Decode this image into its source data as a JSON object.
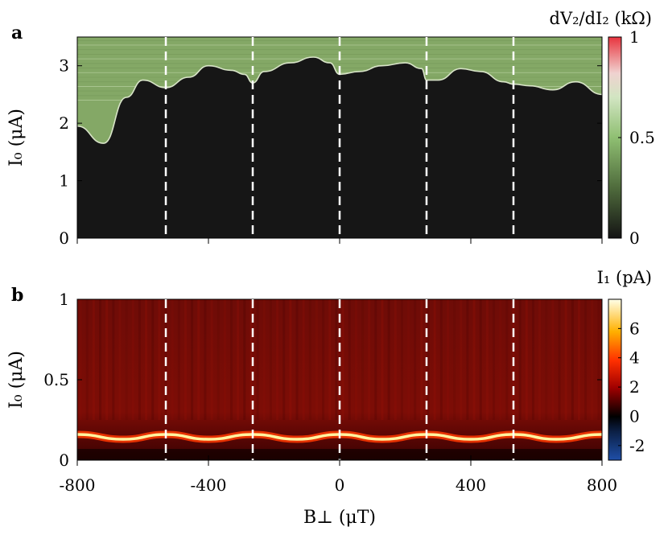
{
  "panels": {
    "a": {
      "label": "a",
      "ylabel": "I₀ (μA)",
      "colorbar_label": "dV₂/dI₂ (kΩ)",
      "yticks": [
        "0",
        "1",
        "2",
        "3"
      ],
      "colorbar_ticks": [
        "0",
        "0.5",
        "1"
      ]
    },
    "b": {
      "label": "b",
      "ylabel": "I₀ (μA)",
      "colorbar_label": "I₁ (pA)",
      "yticks": [
        "0",
        "0.5",
        "1"
      ],
      "colorbar_ticks": [
        "-2",
        "0",
        "2",
        "4",
        "6"
      ]
    }
  },
  "xaxis": {
    "label": "B⊥ (μT)",
    "ticks": [
      "-800",
      "-400",
      "0",
      "400",
      "800"
    ]
  },
  "chart_data": [
    {
      "type": "heatmap",
      "panel": "a",
      "title": "",
      "xlabel": "B⊥ (μT)",
      "ylabel": "I₀ (μA)",
      "xlim": [
        -800,
        800
      ],
      "ylim": [
        0,
        3.5
      ],
      "colorbar": {
        "label": "dV₂/dI₂ (kΩ)",
        "range": [
          0,
          1
        ]
      },
      "dashed_lines_x": [
        -530,
        -265,
        0,
        265,
        530
      ],
      "switching_current_boundary": {
        "x": [
          -800,
          -720,
          -650,
          -600,
          -530,
          -460,
          -400,
          -330,
          -290,
          -265,
          -230,
          -150,
          -80,
          -30,
          0,
          60,
          130,
          200,
          250,
          265,
          300,
          370,
          430,
          500,
          530,
          580,
          650,
          720,
          800
        ],
        "y": [
          1.95,
          1.65,
          2.45,
          2.75,
          2.62,
          2.8,
          3.0,
          2.92,
          2.85,
          2.7,
          2.9,
          3.05,
          3.15,
          3.05,
          2.85,
          2.9,
          3.0,
          3.05,
          2.95,
          2.75,
          2.75,
          2.95,
          2.9,
          2.72,
          2.68,
          2.65,
          2.58,
          2.72,
          2.5
        ]
      },
      "colors": {
        "superconducting": "#161616",
        "normal": "#84a866",
        "boundary": "#d8e4c8"
      }
    },
    {
      "type": "heatmap",
      "panel": "b",
      "title": "",
      "xlabel": "B⊥ (μT)",
      "ylabel": "I₀ (μA)",
      "xlim": [
        -800,
        800
      ],
      "ylim": [
        0,
        1
      ],
      "colorbar": {
        "label": "I₁ (pA)",
        "range": [
          -3,
          8
        ]
      },
      "dashed_lines_x": [
        -530,
        -265,
        0,
        265,
        530
      ],
      "peak_band_center": {
        "x": [
          -800,
          -660,
          -530,
          -400,
          -265,
          -130,
          0,
          130,
          265,
          400,
          530,
          660,
          800
        ],
        "y": [
          0.16,
          0.13,
          0.16,
          0.13,
          0.16,
          0.13,
          0.16,
          0.13,
          0.16,
          0.13,
          0.16,
          0.13,
          0.16
        ]
      },
      "background_I1_pA": 1.2,
      "peak_I1_pA": 7,
      "colors": {
        "background": "#7a0a06",
        "peak": "#fff3a0"
      }
    }
  ]
}
